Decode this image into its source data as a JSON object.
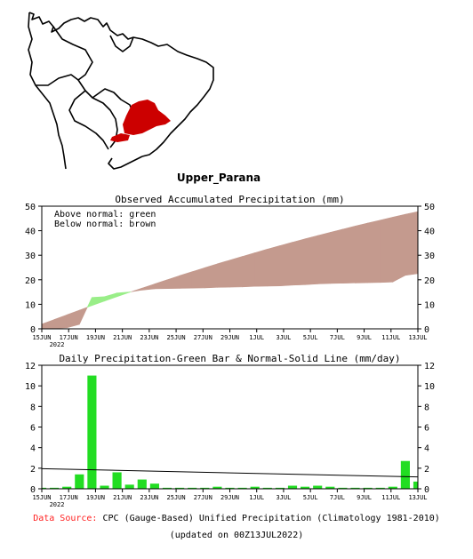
{
  "region_name": "Upper_Parana",
  "colors": {
    "above_normal": "#99ee88",
    "below_normal": "#c49a8e",
    "daily_bar": "#22dd22",
    "region_highlight": "#cc0000",
    "source_label": "#ff2020"
  },
  "footer": {
    "source_label": "Data Source:",
    "source_text": "CPC (Gauge-Based) Unified Precipitation (Climatology 1981-2010)",
    "updated": "(updated on 00Z13JUL2022)"
  },
  "chart_data": [
    {
      "type": "area",
      "title": "Observed Accumulated Precipitation (mm)",
      "legend": [
        "Above normal: green",
        "Below normal: brown"
      ],
      "legend_position": "top-left",
      "x_tick_labels": [
        "15JUN",
        "17JUN",
        "19JUN",
        "21JUN",
        "23JUN",
        "25JUN",
        "27JUN",
        "29JUN",
        "1JUL",
        "3JUL",
        "5JUL",
        "7JUL",
        "9JUL",
        "11JUL",
        "13JUL"
      ],
      "x_sublabel": "2022",
      "ylim": [
        0,
        50
      ],
      "y_ticks": [
        0,
        10,
        20,
        30,
        40,
        50
      ],
      "series": [
        {
          "values": [
            0.1,
            0.2,
            0.4,
            1.8,
            12.8,
            13.1,
            14.6,
            15.0,
            15.8,
            16.3,
            16.4,
            16.5,
            16.6,
            16.7,
            16.9,
            17.0,
            17.1,
            17.3,
            17.4,
            17.5,
            17.8,
            18.0,
            18.3,
            18.5,
            18.6,
            18.7,
            18.8,
            18.9,
            19.1,
            21.8,
            22.5
          ]
        },
        {
          "values": [
            1.9,
            3.8,
            5.7,
            7.6,
            9.5,
            11.3,
            13.1,
            14.9,
            16.6,
            18.3,
            20.0,
            21.7,
            23.3,
            24.9,
            26.5,
            28.0,
            29.5,
            31.0,
            32.5,
            33.9,
            35.3,
            36.7,
            38.0,
            39.3,
            40.6,
            41.9,
            43.1,
            44.3,
            45.5,
            46.7,
            47.8
          ]
        }
      ]
    },
    {
      "type": "bar",
      "title": "Daily Precipitation-Green Bar & Normal-Solid Line (mm/day)",
      "x_tick_labels": [
        "15JUN",
        "17JUN",
        "19JUN",
        "21JUN",
        "23JUN",
        "25JUN",
        "27JUN",
        "29JUN",
        "1JUL",
        "3JUL",
        "5JUL",
        "7JUL",
        "9JUL",
        "11JUL",
        "13JUL"
      ],
      "x_sublabel": "2022",
      "ylim": [
        0,
        12
      ],
      "y_ticks": [
        0,
        2,
        4,
        6,
        8,
        10,
        12
      ],
      "series": [
        {
          "values": [
            0.1,
            0.1,
            0.2,
            1.4,
            11.0,
            0.3,
            1.6,
            0.4,
            0.9,
            0.5,
            0.1,
            0.1,
            0.1,
            0.1,
            0.2,
            0.1,
            0.1,
            0.2,
            0.1,
            0.1,
            0.3,
            0.2,
            0.3,
            0.2,
            0.1,
            0.1,
            0.1,
            0.1,
            0.2,
            2.7,
            0.7
          ]
        },
        {
          "line_start": 1.95,
          "line_end": 1.15
        }
      ]
    }
  ]
}
